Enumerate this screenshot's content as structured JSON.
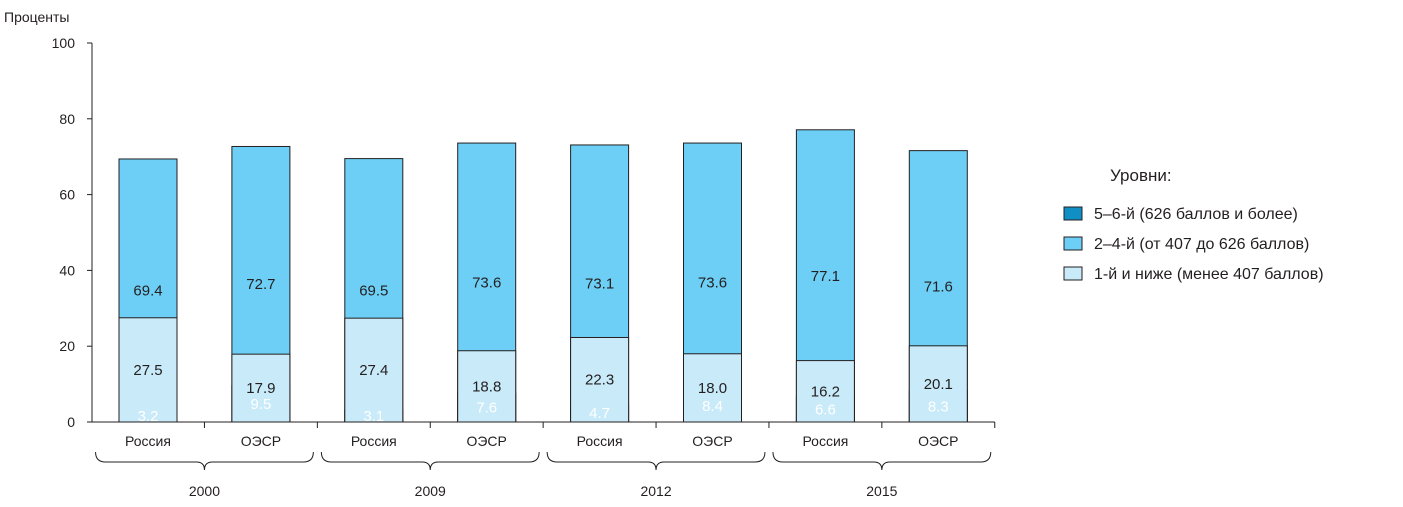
{
  "chart_data": {
    "type": "bar",
    "stacked": true,
    "ylabel": "Проценты",
    "ylim": [
      0,
      100
    ],
    "yticks": [
      "0",
      "20",
      "40",
      "60",
      "80",
      "100"
    ],
    "groups": [
      "2000",
      "2009",
      "2012",
      "2015"
    ],
    "categories": [
      "Россия",
      "ОЭСР",
      "Россия",
      "ОЭСР",
      "Россия",
      "ОЭСР",
      "Россия",
      "ОЭСР"
    ],
    "value_labels": {
      "level_5_6": [
        "3.2",
        "9.5",
        "3.1",
        "7.6",
        "4.7",
        "8.4",
        "6.6",
        "8.3"
      ],
      "level_2_4": [
        "69.4",
        "72.7",
        "69.5",
        "73.6",
        "73.1",
        "73.6",
        "77.1",
        "71.6"
      ],
      "level_1": [
        "27.5",
        "17.9",
        "27.4",
        "18.8",
        "22.3",
        "18.0",
        "16.2",
        "20.1"
      ]
    },
    "series": [
      {
        "name": "5–6-й (626 баллов и более)",
        "key": "level_5_6",
        "color": "#0f8fc4",
        "values": [
          3.2,
          9.5,
          3.1,
          7.6,
          4.7,
          8.4,
          6.6,
          8.3
        ]
      },
      {
        "name": "2–4-й (от 407 до 626 баллов)",
        "key": "level_2_4",
        "color": "#6dcff6",
        "values": [
          69.4,
          72.7,
          69.5,
          73.6,
          73.1,
          73.6,
          77.1,
          71.6
        ]
      },
      {
        "name": "1-й и ниже (менее 407 баллов)",
        "key": "level_1",
        "color": "#c8eaf9",
        "values": [
          27.5,
          17.9,
          27.4,
          18.8,
          22.3,
          18.0,
          16.2,
          20.1
        ]
      }
    ],
    "legend": {
      "title": "Уровни:",
      "placement": "right"
    }
  }
}
